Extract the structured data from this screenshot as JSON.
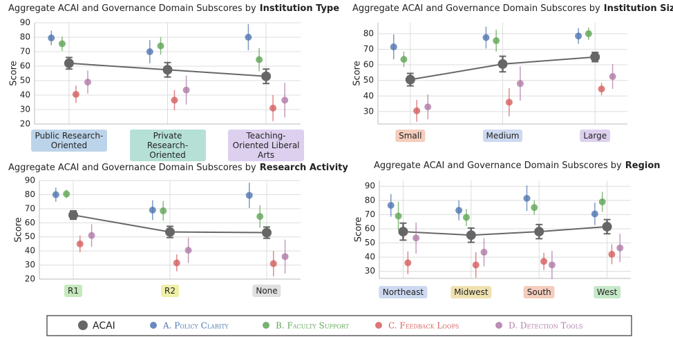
{
  "chart_data": [
    {
      "type": "pointplot",
      "title": [
        "Aggregate ACAI and Governance Domain Subscores by",
        "Institution Type"
      ],
      "y_label": "Score",
      "categories": [
        "Public Research-Oriented",
        "Private Research-Oriented",
        "Teaching-Oriented Liberal Arts"
      ],
      "category_colors": [
        "#bcd4ea",
        "#b5e0d6",
        "#ddd0ef"
      ],
      "ylim": [
        20,
        90
      ],
      "yticks": [
        20,
        30,
        40,
        50,
        60,
        70,
        80,
        90
      ],
      "grid": true,
      "series": [
        {
          "name": "ACAI",
          "color": "#666666",
          "values": [
            62,
            57.5,
            53
          ],
          "errors": [
            4,
            5,
            5
          ]
        },
        {
          "name": "A. Policy Clarity",
          "color": "#4f76b1",
          "values": [
            79.5,
            70,
            80
          ],
          "errors": [
            5,
            8,
            9
          ]
        },
        {
          "name": "B. Faculty Support",
          "color": "#5fa556",
          "values": [
            75.5,
            74,
            64.5
          ],
          "errors": [
            5,
            6,
            8
          ]
        },
        {
          "name": "C. Feedback Loops",
          "color": "#d65f5f",
          "values": [
            40.5,
            36.5,
            31
          ],
          "errors": [
            6,
            7,
            9
          ]
        },
        {
          "name": "D. Detection Tools",
          "color": "#b07aa8",
          "values": [
            49,
            43.5,
            36.5
          ],
          "errors": [
            8,
            10,
            12
          ]
        }
      ]
    },
    {
      "type": "pointplot",
      "title": [
        "Aggregate ACAI and Governance Domain Subscores by",
        "Institution Size"
      ],
      "y_label": "Score",
      "categories": [
        "Small",
        "Medium",
        "Large"
      ],
      "category_colors": [
        "#f4cdbd",
        "#cdd9f0",
        "#ddd0ef"
      ],
      "ylim": [
        22,
        87
      ],
      "yticks": [
        30,
        40,
        50,
        60,
        70,
        80
      ],
      "grid": true,
      "series": [
        {
          "name": "ACAI",
          "color": "#666666",
          "values": [
            50.5,
            60.5,
            65
          ],
          "errors": [
            4,
            5,
            3
          ]
        },
        {
          "name": "A. Policy Clarity",
          "color": "#4f76b1",
          "values": [
            71.5,
            77.5,
            78.5
          ],
          "errors": [
            8,
            7,
            5
          ]
        },
        {
          "name": "B. Faculty Support",
          "color": "#5fa556",
          "values": [
            63.5,
            75.5,
            80
          ],
          "errors": [
            5,
            7,
            4
          ]
        },
        {
          "name": "C. Feedback Loops",
          "color": "#d65f5f",
          "values": [
            30.5,
            36,
            44.5
          ],
          "errors": [
            7,
            9,
            4
          ]
        },
        {
          "name": "D. Detection Tools",
          "color": "#b07aa8",
          "values": [
            33,
            48,
            52.5
          ],
          "errors": [
            8,
            11,
            8
          ]
        }
      ]
    },
    {
      "type": "pointplot",
      "title": [
        "Aggregate ACAI and Governance Domain Subscores by",
        "Research Activity"
      ],
      "y_label": "Score",
      "categories": [
        "R1",
        "R2",
        "None"
      ],
      "category_colors": [
        "#c6e8bd",
        "#eef0a8",
        "#e0e0e0"
      ],
      "ylim": [
        20,
        90
      ],
      "yticks": [
        20,
        30,
        40,
        50,
        60,
        70,
        80,
        90
      ],
      "grid": true,
      "series": [
        {
          "name": "ACAI",
          "color": "#666666",
          "values": [
            65.5,
            53.5,
            53
          ],
          "errors": [
            3,
            4,
            4
          ]
        },
        {
          "name": "A. Policy Clarity",
          "color": "#4f76b1",
          "values": [
            80,
            69,
            79.5
          ],
          "errors": [
            5,
            7,
            9
          ]
        },
        {
          "name": "B. Faculty Support",
          "color": "#5fa556",
          "values": [
            80.5,
            68.5,
            64.5
          ],
          "errors": [
            3,
            7,
            8
          ]
        },
        {
          "name": "C. Feedback Loops",
          "color": "#d65f5f",
          "values": [
            45,
            31.5,
            31
          ],
          "errors": [
            6,
            6,
            9
          ]
        },
        {
          "name": "D. Detection Tools",
          "color": "#b07aa8",
          "values": [
            51,
            40.5,
            36
          ],
          "errors": [
            8,
            9,
            12
          ]
        }
      ]
    },
    {
      "type": "pointplot",
      "title": [
        "Aggregate ACAI and Governance Domain Subscores by",
        "Region"
      ],
      "y_label": "Score",
      "categories": [
        "Northeast",
        "Midwest",
        "South",
        "West"
      ],
      "category_colors": [
        "#cdd9f0",
        "#f0e2b0",
        "#f4cdbd",
        "#c6e8c8"
      ],
      "ylim": [
        25,
        94
      ],
      "yticks": [
        30,
        40,
        50,
        60,
        70,
        80,
        90
      ],
      "grid": true,
      "series": [
        {
          "name": "ACAI",
          "color": "#666666",
          "values": [
            58,
            55.5,
            58,
            61.5
          ],
          "errors": [
            6,
            5,
            5,
            5
          ]
        },
        {
          "name": "A. Policy Clarity",
          "color": "#4f76b1",
          "values": [
            76.5,
            73,
            81.5,
            70.5
          ],
          "errors": [
            8,
            7,
            9,
            8
          ]
        },
        {
          "name": "B. Faculty Support",
          "color": "#5fa556",
          "values": [
            69,
            68,
            75,
            79
          ],
          "errors": [
            10,
            6,
            5,
            7
          ]
        },
        {
          "name": "C. Feedback Loops",
          "color": "#d65f5f",
          "values": [
            36,
            34.5,
            37,
            42
          ],
          "errors": [
            8,
            9,
            6,
            7
          ]
        },
        {
          "name": "D. Detection Tools",
          "color": "#b07aa8",
          "values": [
            53.5,
            43.5,
            34.5,
            46.5
          ],
          "errors": [
            11,
            10,
            10,
            10
          ]
        }
      ]
    }
  ]
}
